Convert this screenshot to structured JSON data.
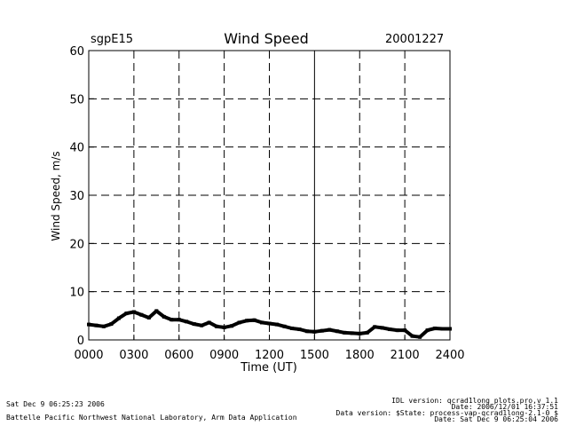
{
  "header": {
    "site": "sgpE15",
    "title": "Wind Speed",
    "date": "20001227"
  },
  "footer": {
    "left_line1": "Sat Dec  9 06:25:23 2006",
    "left_line2": "Battelle Pacific Northwest National Laboratory, Arm Data Application",
    "right_line1": "IDL version: qcrad1long_plots.pro,v 1.1",
    "right_line2": "Date: 2006/12/01 16:37:51",
    "right_line3": "Data version: $State: process-vap-qcrad1long-2.1-0 $",
    "right_line4": "Date: Sat Dec  9 06:25:04 2006"
  },
  "chart_data": {
    "type": "scatter",
    "title": "Wind Speed",
    "xlabel": "Time (UT)",
    "ylabel": "Wind Speed, m/s",
    "xlim": [
      0,
      24
    ],
    "ylim": [
      0,
      60
    ],
    "x_ticks": [
      0,
      3,
      6,
      9,
      12,
      15,
      18,
      21,
      24
    ],
    "x_tick_labels": [
      "0000",
      "0300",
      "0600",
      "0900",
      "1200",
      "1500",
      "1800",
      "2100",
      "2400"
    ],
    "y_ticks": [
      0,
      10,
      20,
      30,
      40,
      50,
      60
    ],
    "y_tick_labels": [
      "0",
      "10",
      "20",
      "30",
      "40",
      "50",
      "60"
    ],
    "grid": "dashed",
    "series": [
      {
        "color": "#000000",
        "x": [
          0,
          0.5,
          1,
          1.5,
          2,
          2.5,
          3,
          3.5,
          4,
          4.5,
          5,
          5.5,
          6,
          6.5,
          7,
          7.5,
          8,
          8.5,
          9,
          9.5,
          10,
          10.5,
          11,
          11.5,
          12,
          12.5,
          13,
          13.5,
          14,
          14.5,
          15,
          15.5,
          16,
          16.5,
          17,
          17.5,
          18,
          18.5,
          19,
          19.5,
          20,
          20.5,
          21,
          21.5,
          22,
          22.5,
          23,
          23.5,
          24
        ],
        "values": [
          3.2,
          3.0,
          2.8,
          3.3,
          4.5,
          5.5,
          5.8,
          5.2,
          4.6,
          6.0,
          4.8,
          4.2,
          4.2,
          3.8,
          3.3,
          3.0,
          3.6,
          2.8,
          2.6,
          2.9,
          3.6,
          4.0,
          4.1,
          3.6,
          3.4,
          3.2,
          2.8,
          2.4,
          2.2,
          1.8,
          1.7,
          1.9,
          2.1,
          1.8,
          1.5,
          1.4,
          1.3,
          1.5,
          2.7,
          2.5,
          2.2,
          2.0,
          2.0,
          0.8,
          0.6,
          2.0,
          2.4,
          2.3,
          2.3
        ]
      }
    ]
  }
}
